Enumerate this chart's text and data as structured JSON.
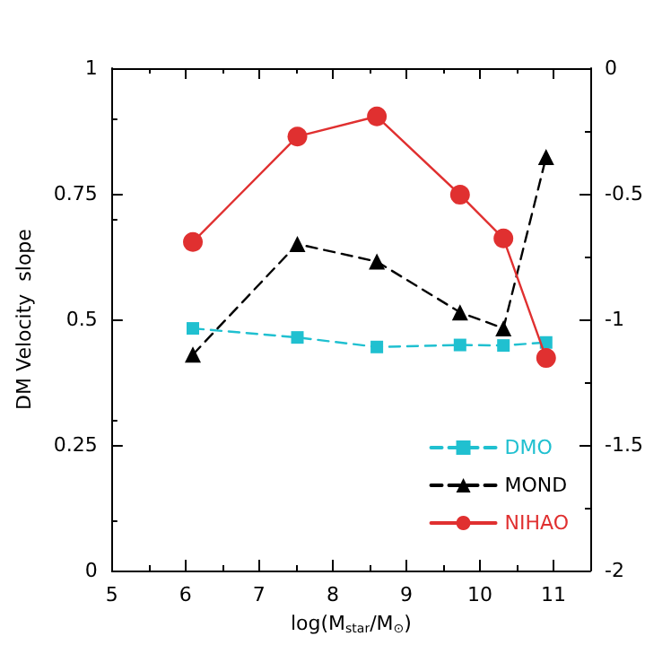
{
  "chart_data": {
    "type": "line",
    "xlabel": "log(M$_{star}$/M$_{⊙}$)",
    "ylabel": "DM Velocity  slope",
    "x": [
      6.1,
      7.52,
      8.6,
      9.73,
      10.32,
      10.9
    ],
    "xlim": [
      5,
      11.5
    ],
    "xticks": [
      5,
      6,
      7,
      8,
      9,
      10,
      11
    ],
    "ylim": [
      0,
      1
    ],
    "yticks": [
      0,
      0.25,
      0.5,
      0.75,
      1
    ],
    "y2lim": [
      -2,
      0
    ],
    "y2ticks": [
      -2,
      -1.5,
      -1,
      -0.5,
      0
    ],
    "legend": "bottom right",
    "grid": false,
    "series": [
      {
        "name": "DMO",
        "color": "#20c0d0",
        "marker": "square",
        "line_style": "dashed",
        "values": [
          0.482,
          0.464,
          0.445,
          0.449,
          0.448,
          0.454
        ]
      },
      {
        "name": "MOND",
        "color": "#000000",
        "marker": "triangle",
        "line_style": "dashed",
        "values": [
          0.43,
          0.65,
          0.615,
          0.514,
          0.482,
          0.823
        ]
      },
      {
        "name": "NIHAO",
        "color": "#e03030",
        "marker": "circle",
        "line_style": "solid",
        "values": [
          0.654,
          0.864,
          0.904,
          0.748,
          0.661,
          0.423
        ]
      }
    ]
  }
}
